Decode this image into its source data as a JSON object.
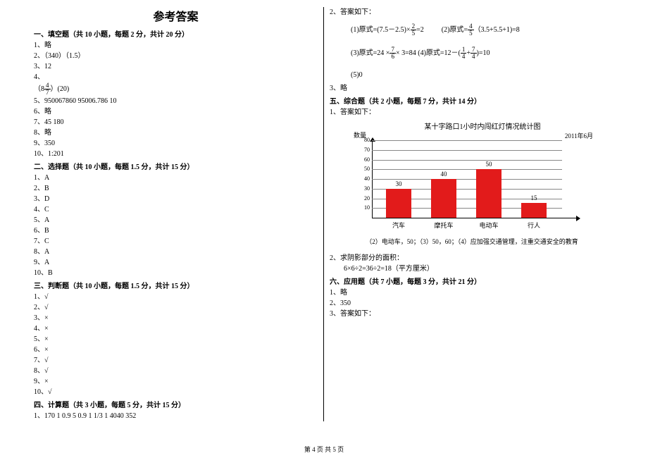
{
  "title": "参考答案",
  "sections": {
    "s1": {
      "header": "一、填空题（共 10 小题，每题 2 分，共计 20 分）"
    },
    "s2": {
      "header": "二、选择题（共 10 小题，每题 1.5 分，共计 15 分）"
    },
    "s3": {
      "header": "三、判断题（共 10 小题，每题 1.5 分，共计 15 分）"
    },
    "s4": {
      "header": "四、计算题（共 3 小题，每题 5 分，共计 15 分）"
    },
    "s5": {
      "header": "五、综合题（共 2 小题，每题 7 分，共计 14 分）"
    },
    "s6": {
      "header": "六、应用题（共 7 小题，每题 3 分，共计 21 分）"
    }
  },
  "left": {
    "a1": "1、略",
    "a2": "2、（340）（1.5）",
    "a3": "3、12",
    "a4_prefix": "4、",
    "a4_open": "（8",
    "a4_num": "4",
    "a4_den": "7",
    "a4_close": "）(20)",
    "a5": "5、950067860     95006.786     10",
    "a6": "6、略",
    "a7": "7、45     180",
    "a8": "8、略",
    "a9": "9、350",
    "a10": "10、1:201",
    "b1": "1、A",
    "b2": "2、B",
    "b3": "3、D",
    "b4": "4、C",
    "b5": "5、A",
    "b6": "6、B",
    "b7": "7、C",
    "b8": "8、A",
    "b9": "9、A",
    "b10": "10、B",
    "c1": "1、√",
    "c2": "2、√",
    "c3": "3、×",
    "c4": "4、×",
    "c5": "5、×",
    "c6": "6、×",
    "c7": "7、√",
    "c8": "8、√",
    "c9": "9、×",
    "c10": "10、√",
    "d1": "1、170    1    0.9    5    0.9    1    1/3    1    4040    352"
  },
  "right": {
    "r2": "2、答案如下：",
    "expr1_a": "(1)原式=(7.5－2.5)×",
    "expr1_frac_num": "2",
    "expr1_frac_den": "5",
    "expr1_b": "=2",
    "expr2_a": "(2)原式=",
    "expr2_frac_num": "4",
    "expr2_frac_den": "5",
    "expr2_b": "（3.5+5.5+1)=8",
    "expr3_a": "(3)原式=24 ×",
    "expr3_f1_num": "7",
    "expr3_f1_den": "6",
    "expr3_mid": "× 3=84",
    "expr4_a": "(4)原式=12－(",
    "expr4_f1_num": "1",
    "expr4_f1_den": "4",
    "expr4_plus": "+",
    "expr4_f2_num": "7",
    "expr4_f2_den": "4",
    "expr4_b": ")=10",
    "expr5": "(5)0",
    "r3": "3、略",
    "t1": "1、答案如下：",
    "chart_title": "某十字路口1小时内闯红灯情况统计图",
    "chart_date": "2011年6月",
    "y_label": "数量",
    "footer2": "（2）电动车，50；（3）50，60；（4）应加强交通管理，注重交通安全的教育",
    "t2a": "2、求阴影部分的面积：",
    "t2b": "　　6×6÷2=36÷2=18（平方厘米）",
    "u1": "1、略",
    "u2": "2、350",
    "u3": "3、答案如下：",
    "y_ticks": [
      "80",
      "70",
      "60",
      "50",
      "40",
      "30",
      "20",
      "10"
    ],
    "categories": [
      "汽车",
      "摩托车",
      "电动车",
      "行人"
    ],
    "values": [
      30,
      40,
      50,
      15
    ],
    "bar_color": "#e21b1b",
    "grid_color": "#888888",
    "y_max": 80,
    "page_footer": "第 4 页 共 5 页"
  }
}
